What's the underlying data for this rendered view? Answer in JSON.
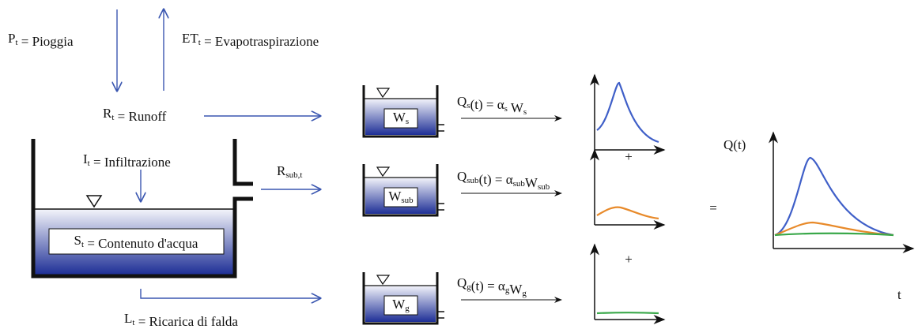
{
  "inputs": {
    "rain": [
      [
        "P",
        "t"
      ],
      [
        " = Pioggia"
      ]
    ],
    "evapotranspiration": [
      [
        "ET",
        "t"
      ],
      [
        " = Evapotraspirazione"
      ]
    ],
    "runoff": [
      [
        "R",
        "t"
      ],
      [
        " = Runoff"
      ]
    ],
    "infiltration": [
      [
        "I",
        "t"
      ],
      [
        " = Infiltrazione"
      ]
    ],
    "storage": [
      [
        "S",
        "t"
      ],
      [
        " = Contenuto d'acqua"
      ]
    ],
    "subsurface_flow": [
      [
        "R",
        "sub,t"
      ]
    ],
    "recharge": [
      [
        "L",
        "t"
      ],
      [
        " = Ricarica di falda"
      ]
    ]
  },
  "reservoirs": [
    {
      "storage": [
        [
          "W",
          "s"
        ]
      ],
      "outflow": [
        [
          "Q",
          "s"
        ],
        [
          "(t) = α",
          "s"
        ],
        [
          " W",
          "s"
        ]
      ]
    },
    {
      "storage": [
        [
          "W",
          "sub"
        ]
      ],
      "outflow": [
        [
          "Q",
          "sub"
        ],
        [
          "(t) = α",
          "sub"
        ],
        [
          "W",
          "sub"
        ]
      ]
    },
    {
      "storage": [
        [
          "W",
          "g"
        ]
      ],
      "outflow": [
        [
          "Q",
          "g"
        ],
        [
          "(t) = α",
          "g"
        ],
        [
          "W",
          "g"
        ]
      ]
    }
  ],
  "operators": {
    "plus_1": "+",
    "plus_2": "+",
    "equals": "="
  },
  "total_hydrograph": {
    "y_label": "Q(t)",
    "x_label": "t"
  }
}
